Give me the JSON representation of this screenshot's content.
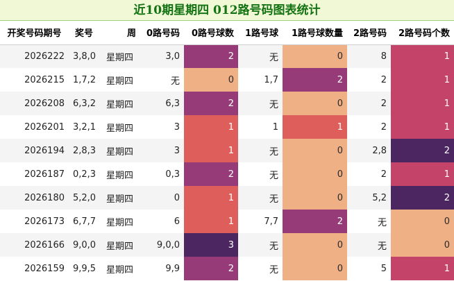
{
  "title": "近10期星期四 012路号码图表统计",
  "columns": [
    "开奖号码期号",
    "奖号",
    "周",
    "0路号码",
    "0路号球数",
    "1路号球",
    "1路号球数量",
    "2路号码",
    "2路号码个数"
  ],
  "heat_colors": {
    "0": "#eeb084",
    "1": "#dd5e5a",
    "2": "#963b78",
    "3": "#4b2660"
  },
  "heat_colors_col8": {
    "0": "#eeb084",
    "1": "#c44369",
    "2": "#4b2660"
  },
  "rows": [
    {
      "period": "2026222",
      "numbers": "3,8,0",
      "weekday": "星期四",
      "r0": "3,0",
      "r0c": "2",
      "r1": "无",
      "r1c": "0",
      "r2": "8",
      "r2c": "1"
    },
    {
      "period": "2026215",
      "numbers": "1,7,2",
      "weekday": "星期四",
      "r0": "无",
      "r0c": "0",
      "r1": "1,7",
      "r1c": "2",
      "r2": "2",
      "r2c": "1"
    },
    {
      "period": "2026208",
      "numbers": "6,3,2",
      "weekday": "星期四",
      "r0": "6,3",
      "r0c": "2",
      "r1": "无",
      "r1c": "0",
      "r2": "2",
      "r2c": "1"
    },
    {
      "period": "2026201",
      "numbers": "3,2,1",
      "weekday": "星期四",
      "r0": "3",
      "r0c": "1",
      "r1": "1",
      "r1c": "1",
      "r2": "2",
      "r2c": "1"
    },
    {
      "period": "2026194",
      "numbers": "2,8,3",
      "weekday": "星期四",
      "r0": "3",
      "r0c": "1",
      "r1": "无",
      "r1c": "0",
      "r2": "2,8",
      "r2c": "2"
    },
    {
      "period": "2026187",
      "numbers": "0,2,3",
      "weekday": "星期四",
      "r0": "0,3",
      "r0c": "2",
      "r1": "无",
      "r1c": "0",
      "r2": "2",
      "r2c": "1"
    },
    {
      "period": "2026180",
      "numbers": "5,2,0",
      "weekday": "星期四",
      "r0": "0",
      "r0c": "1",
      "r1": "无",
      "r1c": "0",
      "r2": "5,2",
      "r2c": "2"
    },
    {
      "period": "2026173",
      "numbers": "6,7,7",
      "weekday": "星期四",
      "r0": "6",
      "r0c": "1",
      "r1": "7,7",
      "r1c": "2",
      "r2": "无",
      "r2c": "0"
    },
    {
      "period": "2026166",
      "numbers": "9,0,0",
      "weekday": "星期四",
      "r0": "9,0,0",
      "r0c": "3",
      "r1": "无",
      "r1c": "0",
      "r2": "无",
      "r2c": "0"
    },
    {
      "period": "2026159",
      "numbers": "9,9,5",
      "weekday": "星期四",
      "r0": "9,9",
      "r0c": "2",
      "r1": "无",
      "r1c": "0",
      "r2": "5",
      "r2c": "1"
    }
  ]
}
